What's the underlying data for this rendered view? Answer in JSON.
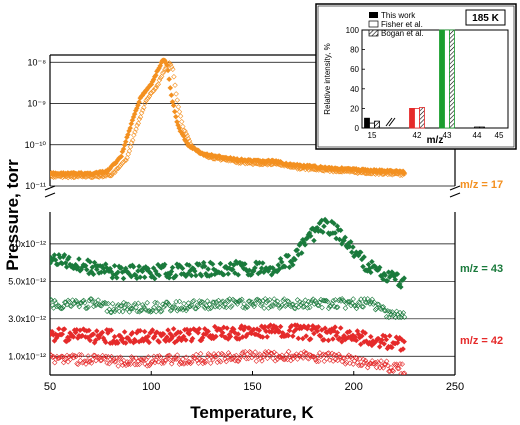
{
  "chart_data": [
    {
      "type": "scatter",
      "xlabel": "Temperature, K",
      "ylabel": "Pressure, torr",
      "xlim": [
        50,
        250
      ],
      "x_ticks": [
        "50",
        "100",
        "150",
        "200",
        "250"
      ],
      "upper_panel": {
        "scale": "log",
        "ylim": [
          1e-11,
          1.5e-08
        ],
        "y_ticks": [
          "10⁻¹¹",
          "10⁻¹⁰",
          "10⁻⁹",
          "10⁻⁸"
        ],
        "grid": true
      },
      "lower_panel": {
        "scale": "linear",
        "ylim": [
          0,
          8.7e-12
        ],
        "y_ticks": [
          "1.0x10⁻¹²",
          "3.0x10⁻¹²",
          "5.0x10⁻¹²",
          "7.0x10⁻¹²"
        ],
        "grid": true
      },
      "series": [
        {
          "name": "m/z = 17",
          "panel": "upper",
          "color": "#f39020",
          "marker": "diamond",
          "points": [
            [
              50,
              2e-11
            ],
            [
              60,
              2e-11
            ],
            [
              70,
              2e-11
            ],
            [
              78,
              2.2e-11
            ],
            [
              85,
              5e-11
            ],
            [
              90,
              3e-10
            ],
            [
              95,
              1.5e-09
            ],
            [
              100,
              3e-09
            ],
            [
              103,
              6e-09
            ],
            [
              106,
              1.2e-08
            ],
            [
              108,
              8e-09
            ],
            [
              110,
              1.5e-09
            ],
            [
              113,
              3e-10
            ],
            [
              118,
              1e-10
            ],
            [
              125,
              6e-11
            ],
            [
              140,
              4.5e-11
            ],
            [
              150,
              4e-11
            ],
            [
              160,
              4e-11
            ],
            [
              170,
              3.2e-11
            ],
            [
              185,
              2.8e-11
            ],
            [
              200,
              2.5e-11
            ],
            [
              225,
              2.2e-11
            ]
          ]
        },
        {
          "name": "m/z = 43",
          "panel": "lower",
          "color": "#1a7a3c",
          "marker": "diamond",
          "points": [
            [
              50,
              6.2e-12
            ],
            [
              60,
              6e-12
            ],
            [
              80,
              5.5e-12
            ],
            [
              100,
              5.5e-12
            ],
            [
              120,
              5.6e-12
            ],
            [
              140,
              5.7e-12
            ],
            [
              160,
              5.7e-12
            ],
            [
              170,
              6.2e-12
            ],
            [
              178,
              7.3e-12
            ],
            [
              185,
              8e-12
            ],
            [
              190,
              7.8e-12
            ],
            [
              195,
              7.2e-12
            ],
            [
              205,
              6e-12
            ],
            [
              215,
              5.3e-12
            ],
            [
              225,
              5e-12
            ]
          ]
        },
        {
          "name": "m/z = 42",
          "panel": "lower",
          "color": "#e52a2a",
          "marker": "diamond",
          "points": [
            [
              50,
              2.2e-12
            ],
            [
              70,
              2.1e-12
            ],
            [
              90,
              2e-12
            ],
            [
              110,
              2.1e-12
            ],
            [
              130,
              2.2e-12
            ],
            [
              150,
              2.3e-12
            ],
            [
              170,
              2.3e-12
            ],
            [
              190,
              2.2e-12
            ],
            [
              210,
              1.9e-12
            ],
            [
              225,
              1.6e-12
            ]
          ]
        }
      ]
    },
    {
      "type": "bar",
      "title_box": "185 K",
      "xlabel": "m/z",
      "ylabel": "Relative intensity, %",
      "categories": [
        "15",
        "42",
        "43",
        "44",
        "45"
      ],
      "ylim": [
        0,
        100
      ],
      "y_ticks": [
        "0",
        "20",
        "40",
        "60",
        "80",
        "100"
      ],
      "series": [
        {
          "name": "This work",
          "values": [
            10,
            20,
            100,
            0,
            0
          ]
        },
        {
          "name": "Fisher et al.",
          "values": [
            5,
            20,
            100,
            1,
            0
          ]
        },
        {
          "name": "Bogan et al.",
          "values": [
            7,
            21,
            100,
            1,
            0
          ]
        }
      ],
      "bar_colors": {
        "15": "#000000",
        "42": "#e52a2a",
        "43": "#1a9e2e",
        "44": "#000000",
        "45": "#000000"
      }
    }
  ]
}
